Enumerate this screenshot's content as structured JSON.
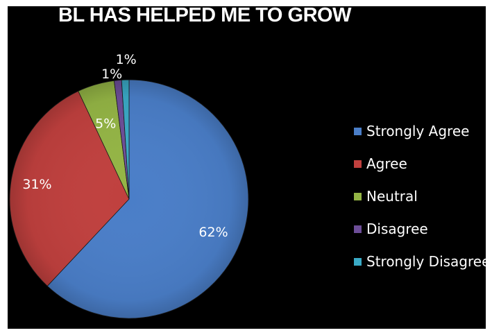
{
  "chart_data": {
    "type": "pie",
    "title": "BL HAS HELPED ME TO GROW",
    "legend_position": "right",
    "slices": [
      {
        "label": "Strongly Agree",
        "value": 62,
        "display": "62%",
        "color": "#4a7ec8"
      },
      {
        "label": "Agree",
        "value": 31,
        "display": "31%",
        "color": "#c0403e"
      },
      {
        "label": "Neutral",
        "value": 5,
        "display": "5%",
        "color": "#94b545"
      },
      {
        "label": "Disagree",
        "value": 1,
        "display": "1%",
        "color": "#6d4e98"
      },
      {
        "label": "Strongly Disagree",
        "value": 1,
        "display": "1%",
        "color": "#3aaac6"
      }
    ]
  }
}
